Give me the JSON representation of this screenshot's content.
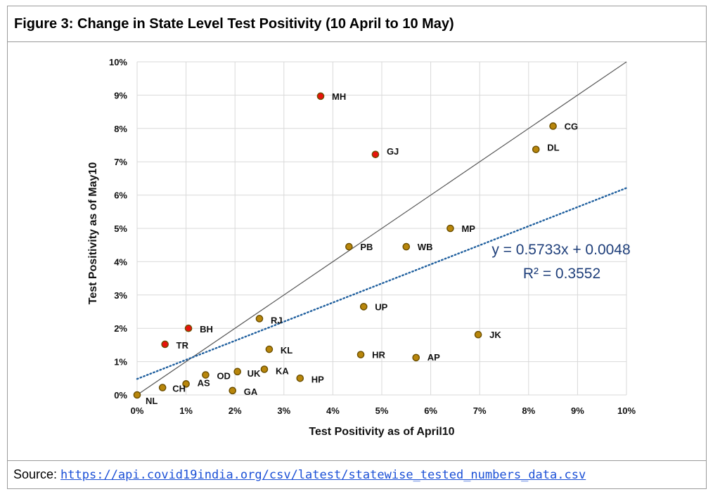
{
  "title": "Figure 3: Change in State Level Test Positivity (10 April to 10 May)",
  "source": {
    "label": "Source: ",
    "link": "https://api.covid19india.org/csv/latest/statewise_tested_numbers_data.csv"
  },
  "colors": {
    "point_normal": "#b8860b",
    "point_highlight": "#e8130c",
    "point_edge": "#6b4e00",
    "trend": "#1f5f9e",
    "diagonal": "#555555",
    "grid": "#d9d9d9",
    "equation": "#1f3f7a"
  },
  "chart_data": {
    "type": "scatter",
    "xlabel": "Test Positivity as of April10",
    "ylabel": "Test Positivity as of May10",
    "xlim": [
      0,
      10
    ],
    "ylim": [
      0,
      10
    ],
    "x_unit": "%",
    "y_unit": "%",
    "x_ticks": [
      "0%",
      "1%",
      "2%",
      "3%",
      "4%",
      "5%",
      "6%",
      "7%",
      "8%",
      "9%",
      "10%"
    ],
    "y_ticks": [
      "0%",
      "1%",
      "2%",
      "3%",
      "4%",
      "5%",
      "6%",
      "7%",
      "8%",
      "9%",
      "10%"
    ],
    "grid": "horizontal and vertical",
    "points": [
      {
        "label": "MH",
        "x": 3.75,
        "y": 8.97,
        "highlight": true
      },
      {
        "label": "CG",
        "x": 8.5,
        "y": 8.07,
        "highlight": false
      },
      {
        "label": "DL",
        "x": 8.15,
        "y": 7.37,
        "highlight": false
      },
      {
        "label": "GJ",
        "x": 4.87,
        "y": 7.22,
        "highlight": true
      },
      {
        "label": "MP",
        "x": 6.4,
        "y": 5.0,
        "highlight": false
      },
      {
        "label": "PB",
        "x": 4.33,
        "y": 4.45,
        "highlight": false
      },
      {
        "label": "WB",
        "x": 5.5,
        "y": 4.45,
        "highlight": false
      },
      {
        "label": "UP",
        "x": 4.63,
        "y": 2.65,
        "highlight": false
      },
      {
        "label": "RJ",
        "x": 2.5,
        "y": 2.29,
        "highlight": false
      },
      {
        "label": "BH",
        "x": 1.05,
        "y": 2.0,
        "highlight": true
      },
      {
        "label": "JK",
        "x": 6.97,
        "y": 1.81,
        "highlight": false
      },
      {
        "label": "TR",
        "x": 0.57,
        "y": 1.52,
        "highlight": true
      },
      {
        "label": "KL",
        "x": 2.7,
        "y": 1.37,
        "highlight": false
      },
      {
        "label": "HR",
        "x": 4.57,
        "y": 1.21,
        "highlight": false
      },
      {
        "label": "AP",
        "x": 5.7,
        "y": 1.12,
        "highlight": false
      },
      {
        "label": "KA",
        "x": 2.6,
        "y": 0.77,
        "highlight": false
      },
      {
        "label": "UK",
        "x": 2.05,
        "y": 0.7,
        "highlight": false
      },
      {
        "label": "OD",
        "x": 1.4,
        "y": 0.6,
        "highlight": false
      },
      {
        "label": "HP",
        "x": 3.33,
        "y": 0.5,
        "highlight": false
      },
      {
        "label": "AS",
        "x": 1.0,
        "y": 0.33,
        "highlight": false
      },
      {
        "label": "CH",
        "x": 0.52,
        "y": 0.22,
        "highlight": false
      },
      {
        "label": "GA",
        "x": 1.95,
        "y": 0.13,
        "highlight": false
      },
      {
        "label": "NL",
        "x": 0.0,
        "y": 0.0,
        "highlight": false
      }
    ],
    "reference_line": {
      "type": "y=x"
    },
    "trendline": {
      "type": "linear",
      "style": "dotted",
      "slope": 0.5733,
      "intercept": 0.48
    },
    "annotations": {
      "equation": "y = 0.5733x + 0.0048",
      "r_squared": "R² = 0.3552"
    }
  }
}
